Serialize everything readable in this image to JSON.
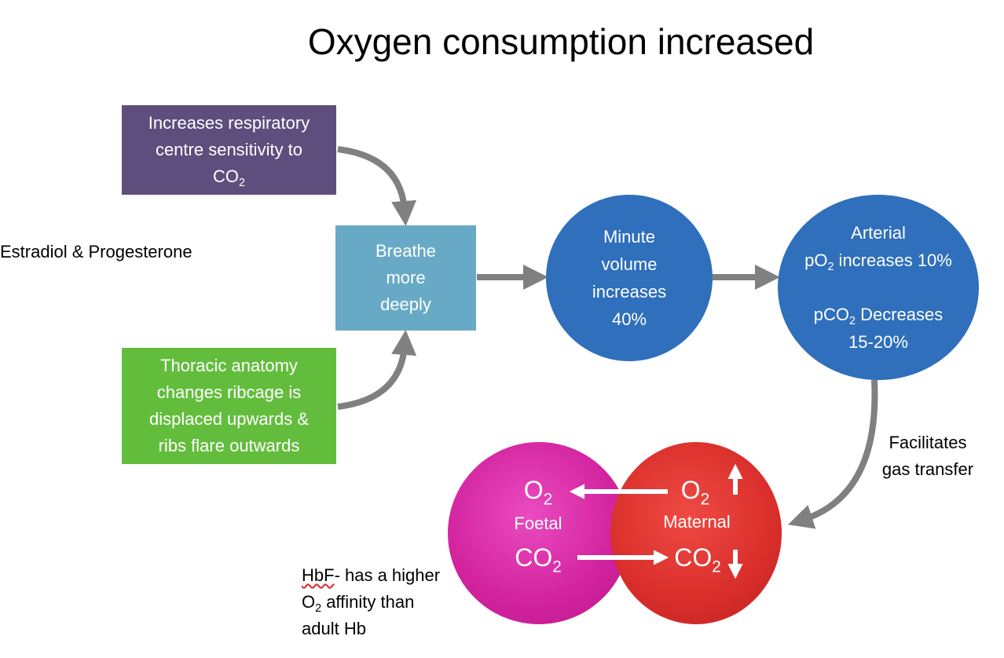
{
  "title": "Oxygen consumption increased",
  "hormones_label": "Estradiol & Progesterone",
  "respiratory_box": {
    "line1": "Increases respiratory",
    "line2": "centre sensitivity to",
    "line3_main": "CO",
    "line3_sub": "2"
  },
  "breathe_box": {
    "line1": "Breathe",
    "line2": "more",
    "line3": "deeply"
  },
  "thoracic_box": {
    "line1": "Thoracic anatomy",
    "line2": "changes ribcage is",
    "line3": "displaced upwards &",
    "line4": "ribs flare outwards"
  },
  "minute_volume": {
    "line1": "Minute",
    "line2": "volume",
    "line3": "increases",
    "line4": "40%"
  },
  "arterial": {
    "line1": "Arterial",
    "po2_pre": "pO",
    "po2_sub": "2",
    "po2_post": " increases 10%",
    "pco2_pre": "pCO",
    "pco2_sub": "2",
    "pco2_post": " Decreases",
    "pco2_value": "15-20%"
  },
  "gas_transfer": {
    "line1": "Facilitates",
    "line2": "gas transfer"
  },
  "foetal": {
    "o2_main": "O",
    "o2_sub": "2",
    "label": "Foetal",
    "co2_main": "CO",
    "co2_sub": "2"
  },
  "maternal": {
    "o2_main": "O",
    "o2_sub": "2",
    "label": "Maternal",
    "co2_main": "CO",
    "co2_sub": "2"
  },
  "hbf_note": {
    "line1_a": "HbF",
    "line1_b": "- has a higher",
    "line2_main": "O",
    "line2_sub": "2",
    "line2_post": " affinity than",
    "line3": "adult Hb"
  },
  "colors": {
    "purple": "#5e4e7d",
    "teal": "#68aac6",
    "green": "#63bd3d",
    "blue": "#2f6fbb",
    "magenta": "#d2229e",
    "red": "#d92e2b",
    "arrow": "#808080"
  }
}
